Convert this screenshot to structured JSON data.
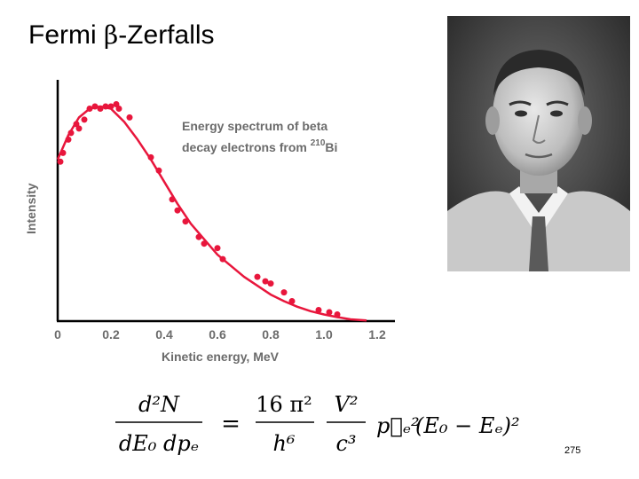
{
  "slide": {
    "title_prefix": "Fermi ",
    "title_greek": "β",
    "title_suffix": "-Zerfalls",
    "page_number": "275"
  },
  "portrait": {
    "alt": "Enrico Fermi portrait photograph"
  },
  "formula": {
    "lhs_num": "d²N",
    "lhs_den": "dE₀ dpₑ",
    "coef_num": "16 π²",
    "coef_den": "h⁶",
    "v_num": "V²",
    "v_den": "c³",
    "p_term": "p⃗ₑ²",
    "energy_term": "(E₀ − Eₑ)²"
  },
  "chart_data": {
    "type": "scatter",
    "annotation_line1": "Energy spectrum of beta",
    "annotation_line2": "decay electrons from",
    "annotation_sup": "210",
    "annotation_element": "Bi",
    "xlabel": "Kinetic energy, MeV",
    "ylabel": "Intensity",
    "xlim": [
      0,
      1.2
    ],
    "ylim": [
      0,
      1.05
    ],
    "x_ticks": [
      "0",
      "0.2",
      "0.4",
      "0.6",
      "0.8",
      "1.0",
      "1.2"
    ],
    "point_color": "#e8163c",
    "curve_color": "#e8163c",
    "points": [
      {
        "x": 0.01,
        "y": 0.72
      },
      {
        "x": 0.02,
        "y": 0.76
      },
      {
        "x": 0.04,
        "y": 0.82
      },
      {
        "x": 0.05,
        "y": 0.85
      },
      {
        "x": 0.07,
        "y": 0.89
      },
      {
        "x": 0.08,
        "y": 0.87
      },
      {
        "x": 0.1,
        "y": 0.91
      },
      {
        "x": 0.12,
        "y": 0.96
      },
      {
        "x": 0.14,
        "y": 0.97
      },
      {
        "x": 0.16,
        "y": 0.96
      },
      {
        "x": 0.18,
        "y": 0.97
      },
      {
        "x": 0.2,
        "y": 0.97
      },
      {
        "x": 0.22,
        "y": 0.98
      },
      {
        "x": 0.23,
        "y": 0.96
      },
      {
        "x": 0.27,
        "y": 0.92
      },
      {
        "x": 0.35,
        "y": 0.74
      },
      {
        "x": 0.38,
        "y": 0.68
      },
      {
        "x": 0.43,
        "y": 0.55
      },
      {
        "x": 0.45,
        "y": 0.5
      },
      {
        "x": 0.48,
        "y": 0.45
      },
      {
        "x": 0.53,
        "y": 0.38
      },
      {
        "x": 0.55,
        "y": 0.35
      },
      {
        "x": 0.6,
        "y": 0.33
      },
      {
        "x": 0.62,
        "y": 0.28
      },
      {
        "x": 0.75,
        "y": 0.2
      },
      {
        "x": 0.78,
        "y": 0.18
      },
      {
        "x": 0.8,
        "y": 0.17
      },
      {
        "x": 0.85,
        "y": 0.13
      },
      {
        "x": 0.88,
        "y": 0.09
      },
      {
        "x": 0.98,
        "y": 0.05
      },
      {
        "x": 1.02,
        "y": 0.04
      },
      {
        "x": 1.05,
        "y": 0.03
      }
    ],
    "curve": [
      {
        "x": 0.0,
        "y": 0.73
      },
      {
        "x": 0.04,
        "y": 0.84
      },
      {
        "x": 0.08,
        "y": 0.92
      },
      {
        "x": 0.12,
        "y": 0.96
      },
      {
        "x": 0.16,
        "y": 0.97
      },
      {
        "x": 0.2,
        "y": 0.96
      },
      {
        "x": 0.25,
        "y": 0.9
      },
      {
        "x": 0.3,
        "y": 0.82
      },
      {
        "x": 0.35,
        "y": 0.73
      },
      {
        "x": 0.4,
        "y": 0.63
      },
      {
        "x": 0.45,
        "y": 0.53
      },
      {
        "x": 0.5,
        "y": 0.44
      },
      {
        "x": 0.55,
        "y": 0.37
      },
      {
        "x": 0.6,
        "y": 0.3
      },
      {
        "x": 0.65,
        "y": 0.25
      },
      {
        "x": 0.7,
        "y": 0.2
      },
      {
        "x": 0.75,
        "y": 0.16
      },
      {
        "x": 0.8,
        "y": 0.12
      },
      {
        "x": 0.85,
        "y": 0.09
      },
      {
        "x": 0.9,
        "y": 0.065
      },
      {
        "x": 0.95,
        "y": 0.045
      },
      {
        "x": 1.0,
        "y": 0.03
      },
      {
        "x": 1.05,
        "y": 0.018
      },
      {
        "x": 1.1,
        "y": 0.008
      },
      {
        "x": 1.16,
        "y": 0.003
      }
    ]
  }
}
